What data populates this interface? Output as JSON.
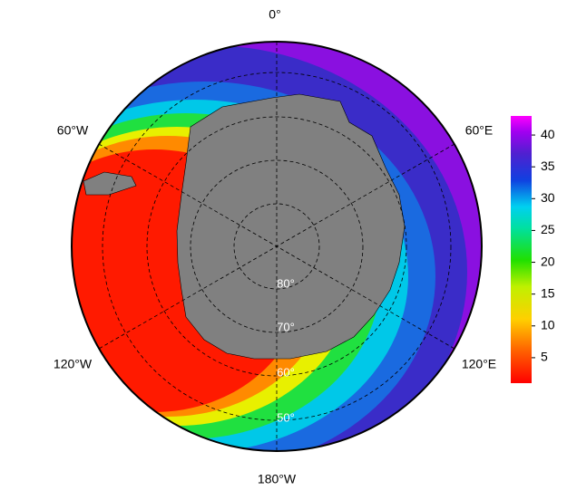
{
  "map": {
    "longitude_labels": [
      "0°",
      "60°E",
      "120°E",
      "180°W",
      "120°W",
      "60°W"
    ],
    "latitude_labels": [
      "80°",
      "70°",
      "60°",
      "50°"
    ],
    "colorbar": {
      "range": [
        1,
        43
      ],
      "ticks": [
        5,
        10,
        15,
        20,
        25,
        30,
        35,
        40
      ]
    }
  }
}
